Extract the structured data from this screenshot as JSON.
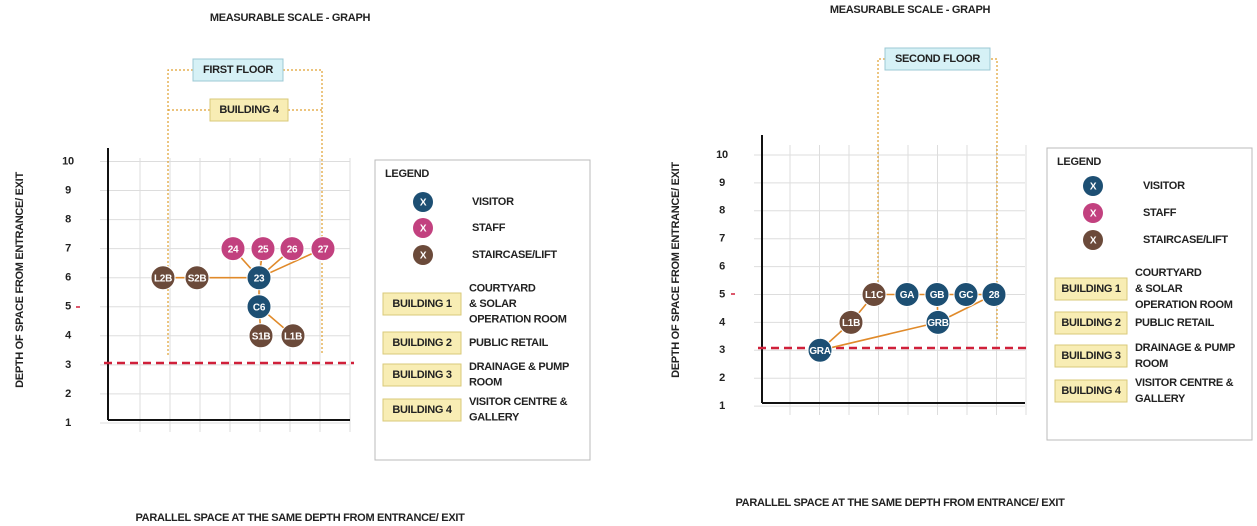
{
  "panels": [
    {
      "title": "MEASURABLE SCALE - GRAPH",
      "floor_label": "FIRST FLOOR",
      "building_label": "BUILDING 4",
      "y_axis_label": "DEPTH OF SPACE FROM ENTRANCE/ EXIT",
      "x_axis_label": "PARALLEL SPACE AT THE SAME DEPTH FROM ENTRANCE/ EXIT",
      "yticks": [
        1,
        2,
        3,
        4,
        5,
        6,
        7,
        8,
        9,
        10
      ],
      "nodes": [
        {
          "label": "L2B",
          "depth": 6,
          "color": "#6b4a3a"
        },
        {
          "label": "S2B",
          "depth": 6,
          "color": "#6b4a3a"
        },
        {
          "label": "23",
          "depth": 6,
          "color": "#1d4f73"
        },
        {
          "label": "24",
          "depth": 7,
          "color": "#c2417f"
        },
        {
          "label": "25",
          "depth": 7,
          "color": "#c2417f"
        },
        {
          "label": "26",
          "depth": 7,
          "color": "#c2417f"
        },
        {
          "label": "27",
          "depth": 7,
          "color": "#c2417f"
        },
        {
          "label": "C6",
          "depth": 5,
          "color": "#1d4f73"
        },
        {
          "label": "S1B",
          "depth": 4,
          "color": "#6b4a3a"
        },
        {
          "label": "L1B",
          "depth": 4,
          "color": "#6b4a3a"
        }
      ],
      "legend": {
        "title": "LEGEND",
        "items": [
          {
            "symbol": "X",
            "label": "VISITOR",
            "color": "#1d4f73"
          },
          {
            "symbol": "X",
            "label": "STAFF",
            "color": "#c2417f"
          },
          {
            "symbol": "X",
            "label": "STAIRCASE/LIFT",
            "color": "#6b4a3a"
          }
        ],
        "buildings": [
          {
            "tag": "BUILDING 1",
            "lines": [
              "COURTYARD",
              "& SOLAR",
              "OPERATION ROOM"
            ]
          },
          {
            "tag": "BUILDING 2",
            "lines": [
              "PUBLIC RETAIL"
            ]
          },
          {
            "tag": "BUILDING 3",
            "lines": [
              "DRAINAGE & PUMP",
              "ROOM"
            ]
          },
          {
            "tag": "BUILDING 4",
            "lines": [
              "VISITOR CENTRE &",
              "GALLERY"
            ]
          }
        ]
      }
    },
    {
      "title": "MEASURABLE SCALE - GRAPH",
      "floor_label": "SECOND FLOOR",
      "y_axis_label": "DEPTH OF SPACE FROM ENTRANCE/ EXIT",
      "x_axis_label": "PARALLEL SPACE AT THE SAME DEPTH FROM ENTRANCE/ EXIT",
      "yticks": [
        1,
        2,
        3,
        4,
        5,
        6,
        7,
        8,
        9,
        10
      ],
      "nodes": [
        {
          "label": "GRA",
          "depth": 3,
          "color": "#1d4f73"
        },
        {
          "label": "L1B",
          "depth": 4,
          "color": "#6b4a3a"
        },
        {
          "label": "L1C",
          "depth": 5,
          "color": "#6b4a3a"
        },
        {
          "label": "GA",
          "depth": 5,
          "color": "#1d4f73"
        },
        {
          "label": "GB",
          "depth": 5,
          "color": "#1d4f73"
        },
        {
          "label": "GC",
          "depth": 5,
          "color": "#1d4f73"
        },
        {
          "label": "28",
          "depth": 5,
          "color": "#1d4f73"
        },
        {
          "label": "GRB",
          "depth": 4,
          "color": "#1d4f73"
        }
      ],
      "legend": {
        "title": "LEGEND",
        "items": [
          {
            "symbol": "X",
            "label": "VISITOR",
            "color": "#1d4f73"
          },
          {
            "symbol": "X",
            "label": "STAFF",
            "color": "#c2417f"
          },
          {
            "symbol": "X",
            "label": "STAIRCASE/LIFT",
            "color": "#6b4a3a"
          }
        ],
        "buildings": [
          {
            "tag": "BUILDING 1",
            "lines": [
              "COURTYARD",
              "& SOLAR",
              "OPERATION ROOM"
            ]
          },
          {
            "tag": "BUILDING 2",
            "lines": [
              "PUBLIC RETAIL"
            ]
          },
          {
            "tag": "BUILDING 3",
            "lines": [
              "DRAINAGE & PUMP",
              "ROOM"
            ]
          },
          {
            "tag": "BUILDING 4",
            "lines": [
              "VISITOR CENTRE &",
              "GALLERY"
            ]
          }
        ]
      }
    }
  ]
}
